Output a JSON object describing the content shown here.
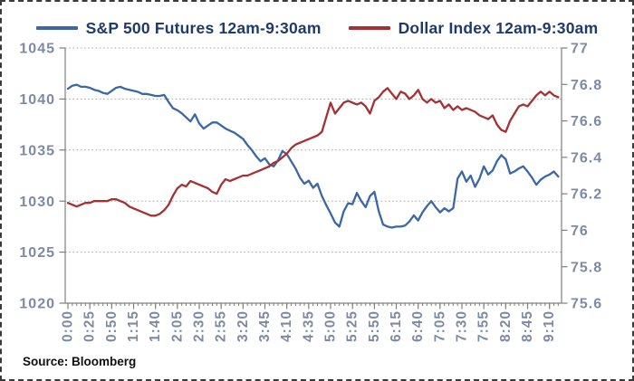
{
  "legend": [
    {
      "name": "sp500",
      "label": "S&P 500 Futures 12am-9:30am",
      "color": "#3b67a5"
    },
    {
      "name": "dollar-index",
      "label": "Dollar Index 12am-9:30am",
      "color": "#a63033"
    }
  ],
  "source_note": "Source: Bloomberg",
  "colors": {
    "legend_text": "#1f3a6c",
    "axis_label": "#7c8aa6",
    "axis_line": "#7f7f7f",
    "grid_line": "#a8a8a8",
    "sp500_line": "#3b67a5",
    "dollar_line": "#a63033"
  },
  "chart_data": {
    "type": "line",
    "title": "",
    "x_start_label": "0:00",
    "x_step_minutes": 5,
    "x_tick_interval_minutes": 25,
    "x_tick_labels": [
      "0:00",
      "0:25",
      "0:50",
      "1:15",
      "1:40",
      "2:05",
      "2:30",
      "2:55",
      "3:20",
      "3:45",
      "4:10",
      "4:35",
      "5:00",
      "5:25",
      "5:50",
      "6:15",
      "6:40",
      "7:05",
      "7:30",
      "7:55",
      "8:20",
      "8:45",
      "9:10"
    ],
    "y_left": {
      "min": 1020,
      "max": 1045,
      "step": 5,
      "ticks": [
        "1045",
        "1040",
        "1035",
        "1030",
        "1025",
        "1020"
      ]
    },
    "y_right": {
      "min": 75.6,
      "max": 77,
      "step": 0.2,
      "ticks": [
        "77",
        "76.8",
        "76.6",
        "76.4",
        "76.2",
        "76",
        "75.8",
        "75.6"
      ]
    },
    "grid_values_left": [
      1040,
      1035,
      1030,
      1025
    ],
    "legend_position": "top",
    "grid": "horizontal-dashed",
    "series": [
      {
        "name": "S&P 500 Futures 12am-9:30am",
        "axis": "left",
        "color": "#3b67a5",
        "values": [
          1041.0,
          1041.3,
          1041.4,
          1041.2,
          1041.2,
          1041.1,
          1040.9,
          1040.8,
          1040.6,
          1040.5,
          1040.8,
          1041.1,
          1041.2,
          1041.0,
          1040.9,
          1040.8,
          1040.7,
          1040.5,
          1040.5,
          1040.4,
          1040.3,
          1040.3,
          1040.4,
          1039.7,
          1039.1,
          1038.9,
          1038.6,
          1038.2,
          1037.8,
          1038.5,
          1037.6,
          1037.1,
          1037.4,
          1037.7,
          1037.7,
          1037.4,
          1037.1,
          1036.9,
          1036.7,
          1036.4,
          1036.1,
          1035.5,
          1035.0,
          1034.4,
          1033.9,
          1034.2,
          1033.6,
          1033.4,
          1034.0,
          1034.9,
          1034.6,
          1033.9,
          1033.2,
          1032.3,
          1031.7,
          1032.0,
          1031.3,
          1031.7,
          1030.5,
          1029.6,
          1028.8,
          1027.9,
          1027.5,
          1029.0,
          1029.8,
          1029.7,
          1030.8,
          1030.0,
          1029.4,
          1030.5,
          1030.9,
          1029.0,
          1027.7,
          1027.5,
          1027.4,
          1027.5,
          1027.5,
          1027.6,
          1028.0,
          1028.6,
          1028.1,
          1028.9,
          1029.5,
          1030.0,
          1029.4,
          1028.9,
          1029.3,
          1029.0,
          1029.3,
          1032.2,
          1032.9,
          1031.9,
          1032.5,
          1031.4,
          1032.2,
          1033.4,
          1032.6,
          1033.0,
          1033.9,
          1034.5,
          1034.1,
          1032.7,
          1032.9,
          1033.2,
          1033.4,
          1032.9,
          1032.3,
          1031.6,
          1032.1,
          1032.4,
          1032.6,
          1032.9,
          1032.4
        ]
      },
      {
        "name": "Dollar Index 12am-9:30am",
        "axis": "right",
        "color": "#a63033",
        "values": [
          76.15,
          76.14,
          76.13,
          76.14,
          76.15,
          76.15,
          76.16,
          76.16,
          76.16,
          76.16,
          76.17,
          76.17,
          76.16,
          76.15,
          76.13,
          76.12,
          76.11,
          76.1,
          76.09,
          76.08,
          76.08,
          76.09,
          76.11,
          76.14,
          76.19,
          76.23,
          76.25,
          76.24,
          76.27,
          76.26,
          76.25,
          76.24,
          76.23,
          76.21,
          76.2,
          76.25,
          76.28,
          76.27,
          76.28,
          76.29,
          76.3,
          76.3,
          76.31,
          76.32,
          76.33,
          76.34,
          76.35,
          76.37,
          76.38,
          76.4,
          76.42,
          76.45,
          76.47,
          76.48,
          76.49,
          76.5,
          76.51,
          76.52,
          76.54,
          76.62,
          76.7,
          76.64,
          76.67,
          76.7,
          76.71,
          76.7,
          76.69,
          76.7,
          76.68,
          76.64,
          76.71,
          76.73,
          76.76,
          76.78,
          76.75,
          76.72,
          76.76,
          76.75,
          76.72,
          76.74,
          76.77,
          76.72,
          76.7,
          76.72,
          76.7,
          76.71,
          76.67,
          76.69,
          76.66,
          76.68,
          76.66,
          76.67,
          76.66,
          76.65,
          76.63,
          76.62,
          76.61,
          76.63,
          76.58,
          76.55,
          76.54,
          76.6,
          76.64,
          76.68,
          76.69,
          76.68,
          76.71,
          76.74,
          76.76,
          76.74,
          76.76,
          76.74,
          76.73
        ]
      }
    ]
  }
}
